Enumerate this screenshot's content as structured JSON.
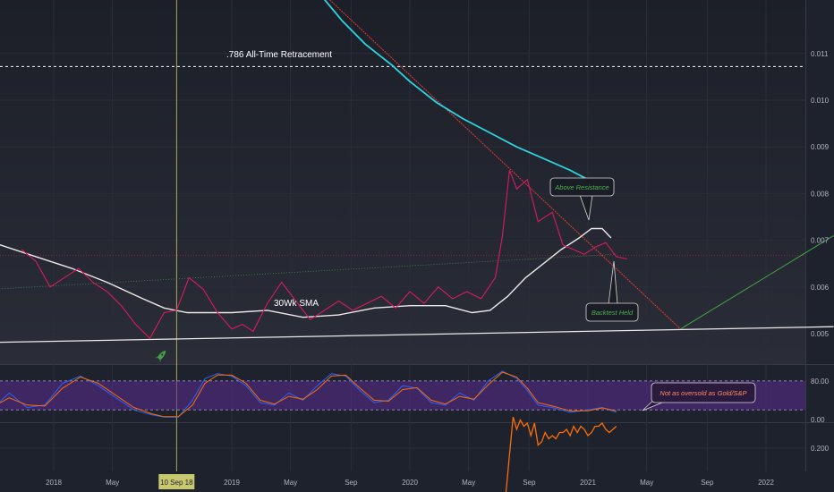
{
  "colors": {
    "background": "#1e222d",
    "panel": "#242833",
    "grid": "#2a2e39",
    "price": "#d81b60",
    "sma": "#ece8e8",
    "cyan": "#2dd4e0",
    "resistance": "#e53935",
    "projection": "#43a047",
    "rsi_band": "#5b2c8f",
    "stoch_k": "#2962ff",
    "stoch_d": "#ff6d00",
    "volatility": "#ff6d00",
    "callout_text_green": "#4caf50",
    "callout_text_orange": "#ff8a65",
    "crosshair": "#c8c86e"
  },
  "chart_data": [
    {
      "type": "line",
      "panel": "main",
      "ylim": [
        0.0046,
        0.0115
      ],
      "y_axis_ticks": [
        "0.011",
        "0.010",
        "0.009",
        "0.008",
        "0.007",
        "0.006",
        "0.005"
      ],
      "x_axis_ticks": [
        "2018",
        "May",
        "10 Sep 18",
        "2019",
        "May",
        "Sep",
        "2020",
        "May",
        "Sep",
        "2021",
        "May",
        "Sep",
        "2022"
      ],
      "x_axis_highlight": "10 Sep 18",
      "annotations": {
        "retracement": ".786 All-Time Retracement",
        "sma_label": "30Wk SMA",
        "above_resistance": "Above Resistance",
        "backtest_held": "Backtest Held"
      },
      "retracement_level": 0.01072,
      "support_level": 0.00667,
      "series": [
        {
          "key": "price",
          "x": [
            2017.82,
            2017.9,
            2017.98,
            2018.06,
            2018.14,
            2018.22,
            2018.3,
            2018.38,
            2018.46,
            2018.54,
            2018.62,
            2018.69,
            2018.76,
            2018.84,
            2018.92,
            2019.0,
            2019.06,
            2019.12,
            2019.2,
            2019.28,
            2019.36,
            2019.44,
            2019.52,
            2019.6,
            2019.68,
            2019.76,
            2019.84,
            2019.92,
            2020.0,
            2020.08,
            2020.16,
            2020.24,
            2020.32,
            2020.4,
            2020.48,
            2020.52,
            2020.56,
            2020.6,
            2020.66,
            2020.72,
            2020.8,
            2020.86,
            2020.92,
            2020.98,
            2021.04,
            2021.1,
            2021.16,
            2021.22
          ],
          "values": [
            0.0068,
            0.00655,
            0.006,
            0.0062,
            0.0064,
            0.0061,
            0.0059,
            0.0056,
            0.0052,
            0.0049,
            0.00545,
            0.0055,
            0.0062,
            0.00595,
            0.00545,
            0.0051,
            0.0052,
            0.00505,
            0.00565,
            0.0061,
            0.0057,
            0.0053,
            0.0055,
            0.0057,
            0.0055,
            0.00565,
            0.0058,
            0.00555,
            0.0059,
            0.00565,
            0.006,
            0.00575,
            0.0059,
            0.00575,
            0.0062,
            0.0071,
            0.0085,
            0.0081,
            0.0083,
            0.0074,
            0.0076,
            0.0069,
            0.0068,
            0.0067,
            0.00685,
            0.00695,
            0.00665,
            0.0066
          ]
        },
        {
          "key": "sma",
          "name": "30Wk SMA",
          "x": [
            2017.55,
            2017.7,
            2017.9,
            2018.1,
            2018.3,
            2018.5,
            2018.62,
            2018.75,
            2018.9,
            2019.0,
            2019.2,
            2019.4,
            2019.6,
            2019.8,
            2020.0,
            2020.2,
            2020.35,
            2020.45,
            2020.55,
            2020.65,
            2020.75,
            2020.85,
            2020.95,
            2021.02,
            2021.08,
            2021.13
          ],
          "values": [
            0.00705,
            0.0069,
            0.00665,
            0.0064,
            0.0061,
            0.00575,
            0.00555,
            0.00545,
            0.00545,
            0.00545,
            0.0055,
            0.00535,
            0.0054,
            0.00555,
            0.0056,
            0.0056,
            0.00545,
            0.0055,
            0.0058,
            0.0062,
            0.0065,
            0.0068,
            0.00705,
            0.00725,
            0.00725,
            0.00705
          ]
        },
        {
          "key": "cyan_ma",
          "x": [
            2019.5,
            2019.62,
            2019.75,
            2019.9,
            2020.0,
            2020.15,
            2020.3,
            2020.45,
            2020.6,
            2020.75,
            2020.9,
            2021.0
          ],
          "values": [
            0.01225,
            0.0117,
            0.0112,
            0.01075,
            0.0104,
            0.00995,
            0.0096,
            0.0093,
            0.009,
            0.00875,
            0.0085,
            0.0083
          ]
        },
        {
          "key": "resistance",
          "x": [
            2019.55,
            2021.52
          ],
          "values": [
            0.01215,
            0.0051
          ]
        },
        {
          "key": "projection",
          "x": [
            2021.52,
            2022.38
          ],
          "values": [
            0.0051,
            0.0071
          ]
        },
        {
          "key": "support_trend",
          "x": [
            2017.5,
            2022.38
          ],
          "values": [
            0.0048,
            0.00515
          ]
        },
        {
          "key": "faint_trend",
          "x": [
            2017.65,
            2021.15
          ],
          "values": [
            0.00595,
            0.0067
          ]
        }
      ],
      "event_date": "10 Sep 18",
      "event_x": 2018.69
    },
    {
      "type": "line",
      "panel": "oscillator",
      "ylim": [
        0,
        100
      ],
      "y_axis_ticks": [
        "80.00",
        "0.00"
      ],
      "band": [
        20,
        80
      ],
      "annotation": "Not as oversold as Gold/S&P",
      "series": [
        {
          "key": "stoch_k",
          "x": [
            2017.55,
            2017.65,
            2017.75,
            2017.85,
            2017.95,
            2018.05,
            2018.15,
            2018.25,
            2018.35,
            2018.45,
            2018.55,
            2018.62,
            2018.7,
            2018.78,
            2018.85,
            2018.92,
            2019.0,
            2019.08,
            2019.16,
            2019.24,
            2019.32,
            2019.4,
            2019.48,
            2019.56,
            2019.64,
            2019.72,
            2019.8,
            2019.88,
            2019.96,
            2020.04,
            2020.12,
            2020.2,
            2020.28,
            2020.36,
            2020.44,
            2020.52,
            2020.6,
            2020.66,
            2020.72,
            2020.8,
            2020.9,
            2021.0,
            2021.08,
            2021.16
          ],
          "values": [
            40,
            20,
            55,
            25,
            30,
            75,
            90,
            70,
            45,
            20,
            10,
            5,
            5,
            40,
            85,
            95,
            90,
            70,
            35,
            30,
            55,
            40,
            70,
            95,
            90,
            60,
            35,
            40,
            70,
            65,
            35,
            30,
            55,
            40,
            80,
            100,
            85,
            60,
            30,
            25,
            15,
            20,
            25,
            15
          ]
        },
        {
          "key": "stoch_d",
          "x": [
            2017.55,
            2017.65,
            2017.75,
            2017.85,
            2017.95,
            2018.05,
            2018.15,
            2018.25,
            2018.35,
            2018.45,
            2018.55,
            2018.62,
            2018.7,
            2018.78,
            2018.85,
            2018.92,
            2019.0,
            2019.08,
            2019.16,
            2019.24,
            2019.32,
            2019.4,
            2019.48,
            2019.56,
            2019.64,
            2019.72,
            2019.8,
            2019.88,
            2019.96,
            2020.04,
            2020.12,
            2020.2,
            2020.28,
            2020.36,
            2020.44,
            2020.52,
            2020.6,
            2020.66,
            2020.72,
            2020.8,
            2020.9,
            2021.0,
            2021.08,
            2021.16
          ],
          "values": [
            38,
            25,
            45,
            30,
            28,
            65,
            88,
            75,
            50,
            25,
            12,
            6,
            6,
            30,
            75,
            92,
            92,
            75,
            40,
            32,
            48,
            42,
            62,
            90,
            92,
            65,
            40,
            38,
            62,
            66,
            40,
            32,
            48,
            42,
            72,
            98,
            88,
            65,
            35,
            28,
            18,
            18,
            24,
            18
          ]
        }
      ]
    },
    {
      "type": "line",
      "panel": "lower",
      "y_axis_ticks": [
        "0.200"
      ],
      "ylim": [
        0.13,
        0.26
      ],
      "series": [
        {
          "key": "volatility",
          "x": [
            2020.54,
            2020.56,
            2020.58,
            2020.6,
            2020.62,
            2020.64,
            2020.66,
            2020.68,
            2020.7,
            2020.72,
            2020.74,
            2020.76,
            2020.78,
            2020.8,
            2020.82,
            2020.84,
            2020.86,
            2020.88,
            2020.9,
            2020.92,
            2020.94,
            2020.96,
            2020.98,
            2021.0,
            2021.02,
            2021.04,
            2021.06,
            2021.08,
            2021.1,
            2021.12,
            2021.14,
            2021.16
          ],
          "values": [
            0.13,
            0.19,
            0.25,
            0.23,
            0.245,
            0.235,
            0.24,
            0.22,
            0.24,
            0.205,
            0.21,
            0.225,
            0.215,
            0.22,
            0.215,
            0.225,
            0.225,
            0.23,
            0.22,
            0.235,
            0.225,
            0.235,
            0.23,
            0.22,
            0.225,
            0.235,
            0.235,
            0.24,
            0.23,
            0.225,
            0.23,
            0.235
          ]
        }
      ]
    }
  ]
}
